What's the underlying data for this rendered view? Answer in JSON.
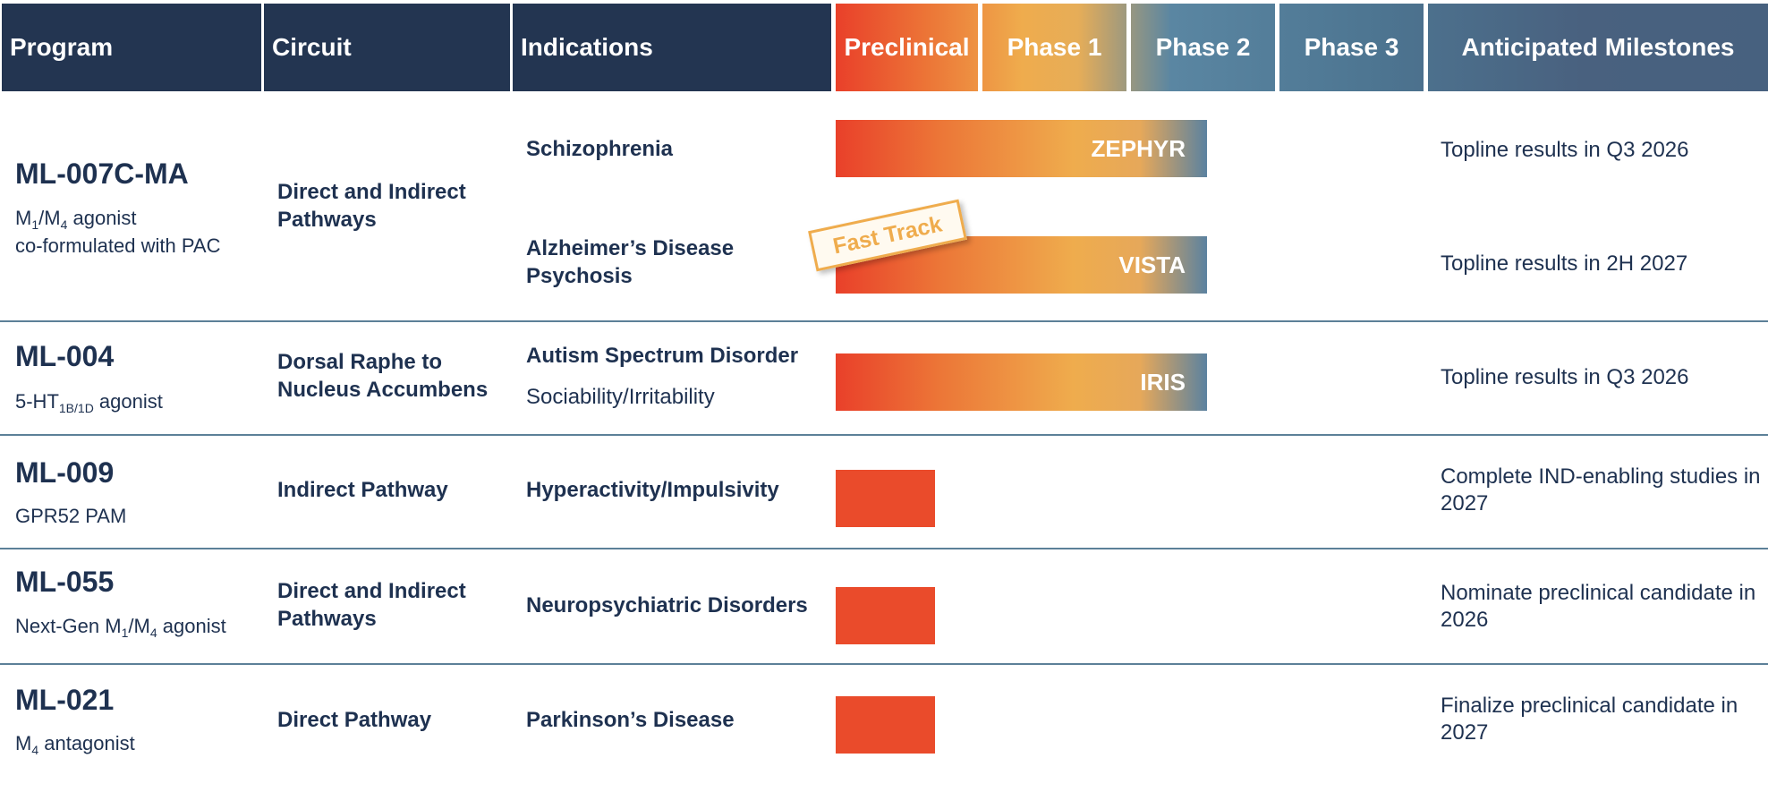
{
  "header": {
    "program": "Program",
    "circuit": "Circuit",
    "indications": "Indications",
    "preclinical": "Preclinical",
    "phase1": "Phase 1",
    "phase2": "Phase 2",
    "phase3": "Phase 3",
    "milestones": "Anticipated Milestones"
  },
  "colors": {
    "header_dark": "#233551",
    "preclinical": "#e9402a",
    "phase1": "#efac4d",
    "phase_blue": "#4d7591",
    "text": "#1e3150"
  },
  "rows": [
    {
      "program": "ML-007C-MA",
      "desc_a": "M",
      "desc_sub1": "1",
      "desc_b": "/M",
      "desc_sub2": "4",
      "desc_c": " agonist",
      "desc_line2": "co-formulated with PAC",
      "circuit": "Direct and Indirect Pathways",
      "trials": [
        {
          "indication": "Schizophrenia",
          "trial": "ZEPHYR",
          "stage": "Phase 2",
          "milestone": "Topline results in Q3 2026"
        },
        {
          "indication": "Alzheimer’s Disease Psychosis",
          "trial": "VISTA",
          "stage": "Phase 2",
          "designation": "Fast Track",
          "milestone": "Topline results in 2H 2027"
        }
      ]
    },
    {
      "program": "ML-004",
      "desc_a": "5-HT",
      "desc_sub1": "1B/1D",
      "desc_c": " agonist",
      "circuit": "Dorsal Raphe to Nucleus Accumbens",
      "trials": [
        {
          "indication": "Autism Spectrum Disorder",
          "indication_detail": "Sociability/Irritability",
          "trial": "IRIS",
          "stage": "Phase 2",
          "milestone": "Topline results in Q3 2026"
        }
      ]
    },
    {
      "program": "ML-009",
      "desc_a": "GPR52 PAM",
      "circuit": "Indirect Pathway",
      "trials": [
        {
          "indication": "Hyperactivity/Impulsivity",
          "stage": "Preclinical",
          "milestone": "Complete IND-enabling studies in 2027"
        }
      ]
    },
    {
      "program": "ML-055",
      "desc_a": "Next-Gen M",
      "desc_sub1": "1",
      "desc_b": "/M",
      "desc_sub2": "4",
      "desc_c": " agonist",
      "circuit": "Direct and Indirect Pathways",
      "trials": [
        {
          "indication": "Neuropsychiatric Disorders",
          "stage": "Preclinical",
          "milestone": "Nominate preclinical candidate in 2026"
        }
      ]
    },
    {
      "program": "ML-021",
      "desc_a": "M",
      "desc_sub1": "4",
      "desc_c": " antagonist",
      "circuit": "Direct Pathway",
      "trials": [
        {
          "indication": "Parkinson’s Disease",
          "stage": "Preclinical",
          "milestone": "Finalize preclinical candidate in 2027"
        }
      ]
    }
  ],
  "chart_data": {
    "type": "bar",
    "title": "",
    "xlabel": "",
    "ylabel": "",
    "categories": [
      "Schizophrenia",
      "Alzheimer’s Disease Psychosis",
      "Autism Spectrum Disorder",
      "Hyperactivity/Impulsivity",
      "Neuropsychiatric Disorders",
      "Parkinson’s Disease"
    ],
    "x_stages": [
      "Preclinical",
      "Phase 1",
      "Phase 2",
      "Phase 3"
    ],
    "values": [
      2.5,
      2.5,
      2.5,
      0.67,
      0.67,
      0.67
    ],
    "bar_labels": [
      "ZEPHYR",
      "VISTA",
      "IRIS",
      "",
      "",
      ""
    ],
    "xlim": [
      0,
      4
    ]
  }
}
